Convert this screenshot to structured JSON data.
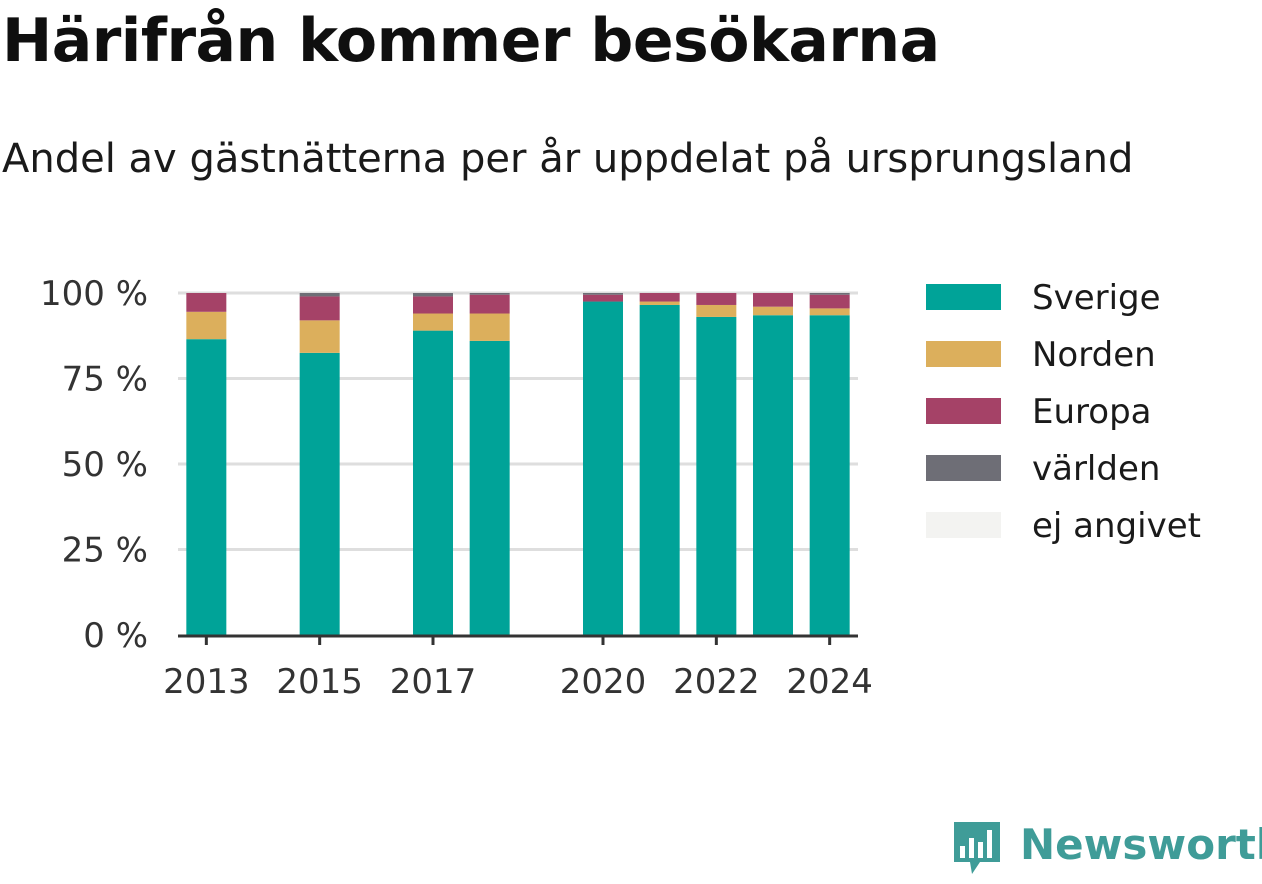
{
  "title": "Härifrån kommer besökarna",
  "subtitle": "Andel av gästnätterna per år uppdelat på ursprungsland",
  "brand": {
    "name": "Newsworthy",
    "color": "#3f9c98"
  },
  "chart_data": {
    "type": "bar",
    "stacked": true,
    "x": [
      2013,
      2015,
      2017,
      2018,
      2020,
      2021,
      2022,
      2023,
      2024
    ],
    "x_tick_labels": [
      "2013",
      "2015",
      "2017",
      "2020",
      "2022",
      "2024"
    ],
    "xlim": [
      2012.5,
      2024.5
    ],
    "ylim": [
      0,
      100
    ],
    "y_ticks": [
      0,
      25,
      50,
      75,
      100
    ],
    "y_tick_labels": [
      "0 %",
      "25 %",
      "50 %",
      "75 %",
      "100 %"
    ],
    "grid": true,
    "legend_position": "right",
    "series": [
      {
        "name": "Sverige",
        "color": "#00a398",
        "values": [
          86.5,
          82.5,
          89,
          86,
          97.5,
          96.5,
          93,
          93.5,
          93.5
        ]
      },
      {
        "name": "Norden",
        "color": "#dcaf5c",
        "values": [
          8,
          9.5,
          5,
          8,
          0,
          1,
          3.5,
          2.5,
          2
        ]
      },
      {
        "name": "Europa",
        "color": "#a54267",
        "values": [
          5.5,
          7,
          5,
          5.5,
          2,
          2.5,
          3.5,
          4,
          4
        ]
      },
      {
        "name": "världen",
        "color": "#6e6e76",
        "values": [
          0,
          1,
          1,
          0.5,
          0.5,
          0,
          0,
          0,
          0.5
        ]
      },
      {
        "name": "ej angivet",
        "color": "#f3f3f1",
        "values": [
          0,
          0,
          0,
          0,
          0,
          0,
          0,
          0,
          0
        ]
      }
    ]
  }
}
